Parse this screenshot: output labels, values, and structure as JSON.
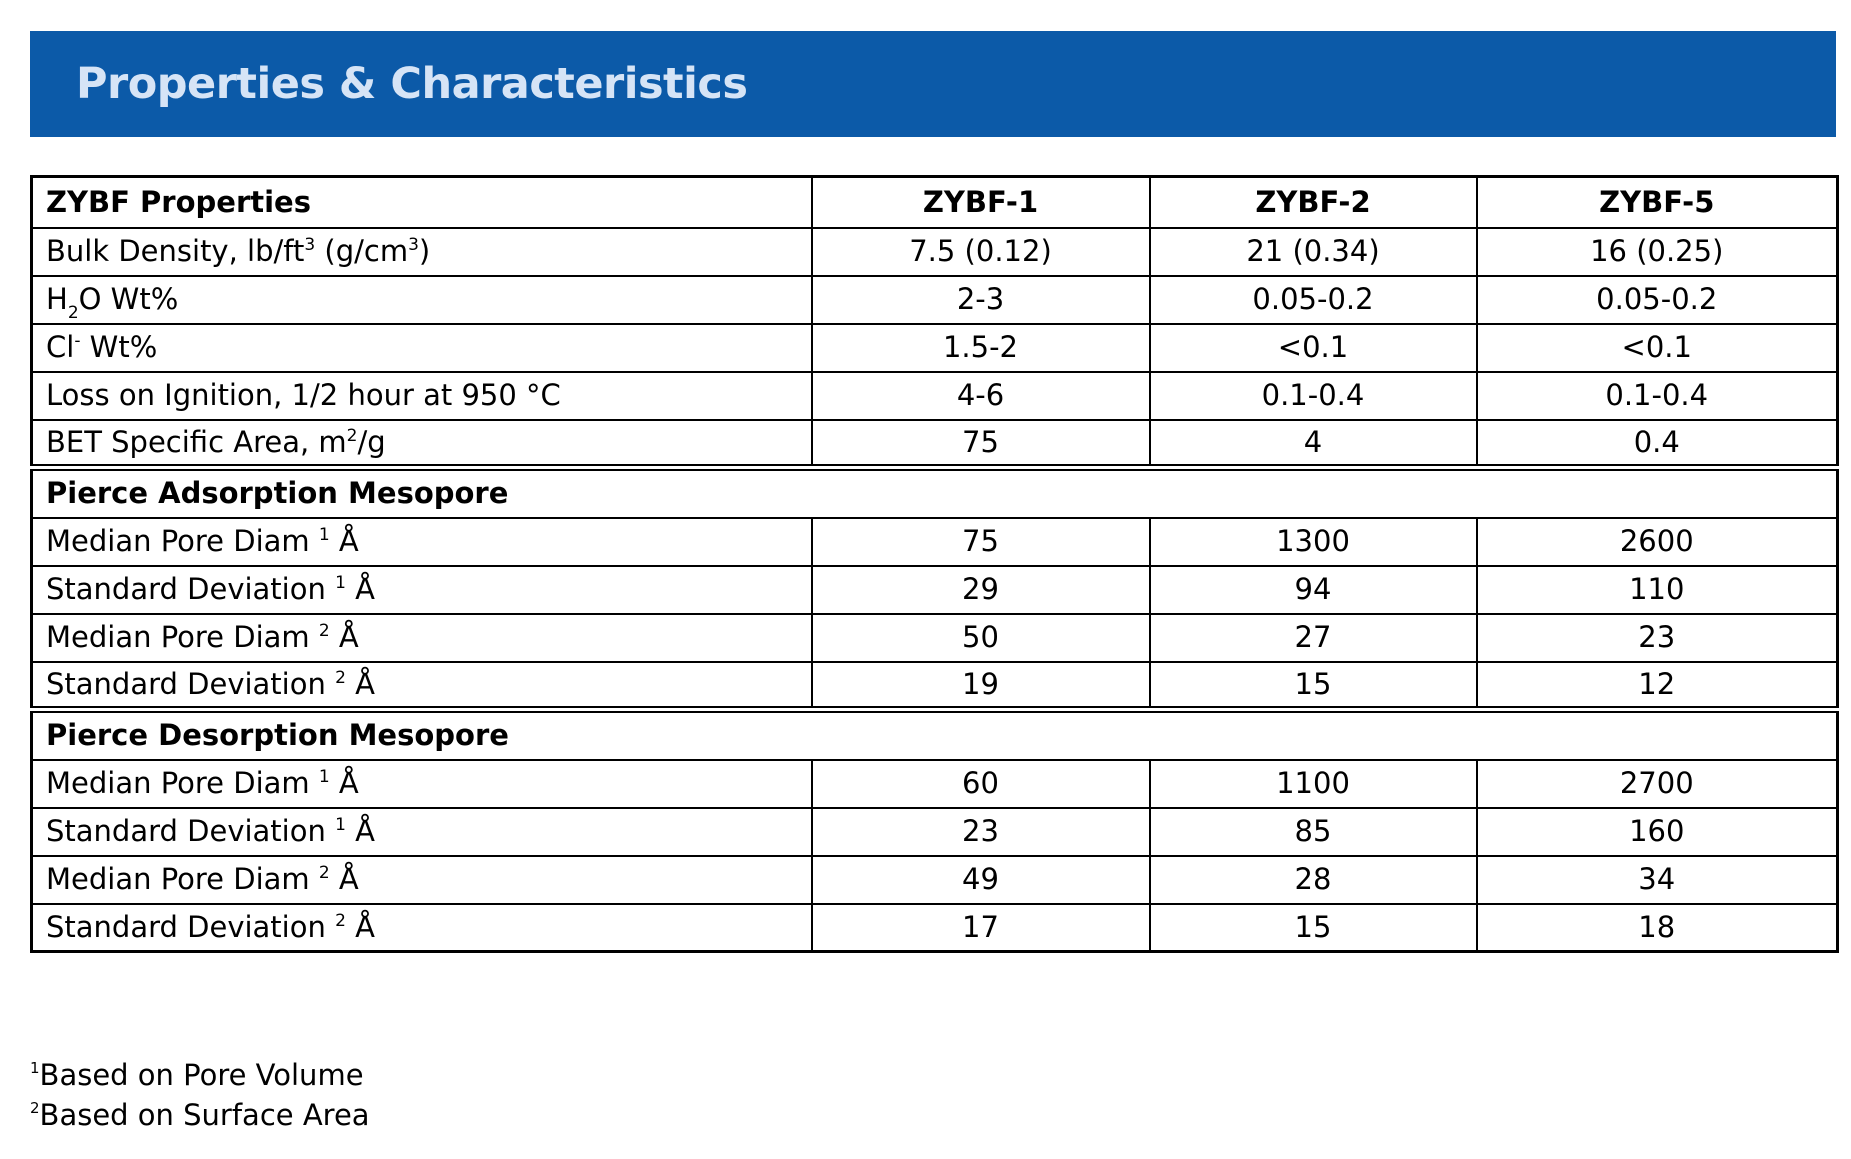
{
  "banner": {
    "title": "Properties & Characteristics",
    "color": "#0c5aa8"
  },
  "table": {
    "header": {
      "label": "ZYBF Properties",
      "products": [
        "ZYBF-1",
        "ZYBF-2",
        "ZYBF-5"
      ]
    },
    "general_rows": [
      {
        "label_parts": [
          "Bulk Density, lb/ft",
          "3",
          " (g/cm",
          "3",
          ")"
        ],
        "values": [
          "7.5 (0.12)",
          "21 (0.34)",
          "16 (0.25)"
        ]
      },
      {
        "label_parts": [
          "H",
          "2",
          "O Wt%"
        ],
        "values": [
          "2-3",
          "0.05-0.2",
          "0.05-0.2"
        ]
      },
      {
        "label_parts": [
          "Cl",
          "-",
          " Wt%"
        ],
        "values": [
          "1.5-2",
          "<0.1",
          "<0.1"
        ]
      },
      {
        "label": "Loss on Ignition, 1/2 hour at 950 °C",
        "values": [
          "4-6",
          "0.1-0.4",
          "0.1-0.4"
        ]
      },
      {
        "label_parts": [
          "BET Specific Area, m",
          "2",
          "/g"
        ],
        "values": [
          "75",
          "4",
          "0.4"
        ]
      }
    ],
    "adsorption": {
      "title": "Pierce Adsorption Mesopore",
      "rows": [
        {
          "label": "Median Pore Diam",
          "note": "1",
          "unit": "Å",
          "values": [
            "75",
            "1300",
            "2600"
          ]
        },
        {
          "label": "Standard Deviation",
          "note": "1",
          "unit": "Å",
          "values": [
            "29",
            "94",
            "110"
          ]
        },
        {
          "label": "Median Pore Diam",
          "note": "2",
          "unit": "Å",
          "values": [
            "50",
            "27",
            "23"
          ]
        },
        {
          "label": "Standard Deviation",
          "note": "2",
          "unit": "Å",
          "values": [
            "19",
            "15",
            "12"
          ]
        }
      ]
    },
    "desorption": {
      "title": "Pierce Desorption Mesopore",
      "rows": [
        {
          "label": "Median Pore Diam",
          "note": "1",
          "unit": "Å",
          "values": [
            "60",
            "1100",
            "2700"
          ]
        },
        {
          "label": "Standard Deviation",
          "note": "1",
          "unit": "Å",
          "values": [
            "23",
            "85",
            "160"
          ]
        },
        {
          "label": "Median Pore Diam",
          "note": "2",
          "unit": "Å",
          "values": [
            "49",
            "28",
            "34"
          ]
        },
        {
          "label": "Standard Deviation",
          "note": "2",
          "unit": "Å",
          "values": [
            "17",
            "15",
            "18"
          ]
        }
      ]
    }
  },
  "footnotes": [
    {
      "mark": "1",
      "text": "Based on Pore Volume"
    },
    {
      "mark": "2",
      "text": "Based on Surface Area"
    }
  ]
}
